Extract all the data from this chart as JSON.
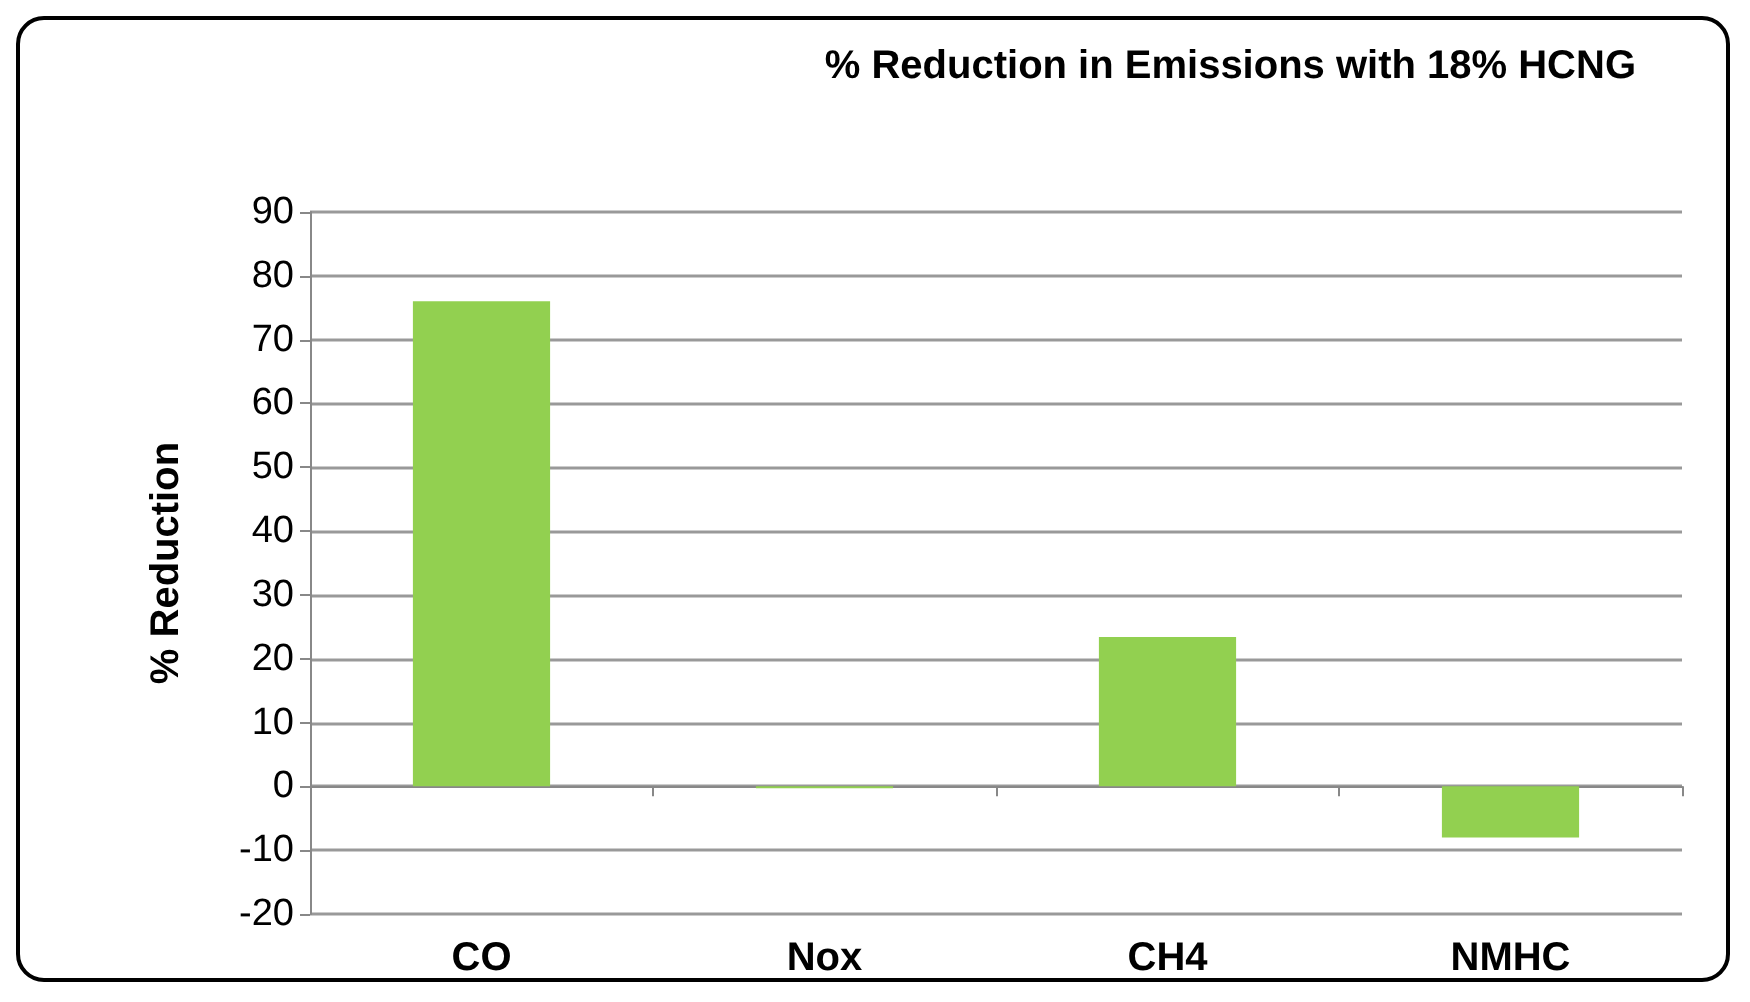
{
  "chart_data": {
    "type": "bar",
    "title": "% Reduction in Emissions with 18% HCNG",
    "ylabel": "% Reduction",
    "categories": [
      "CO",
      "Nox",
      "CH4",
      "NMHC"
    ],
    "values": [
      76,
      -0.3,
      23.4,
      -8
    ],
    "color": "#92d050",
    "ylim": [
      -20,
      90
    ],
    "yticks": [
      -20,
      -10,
      0,
      10,
      20,
      30,
      40,
      50,
      60,
      70,
      80,
      90
    ],
    "grid": "y"
  }
}
